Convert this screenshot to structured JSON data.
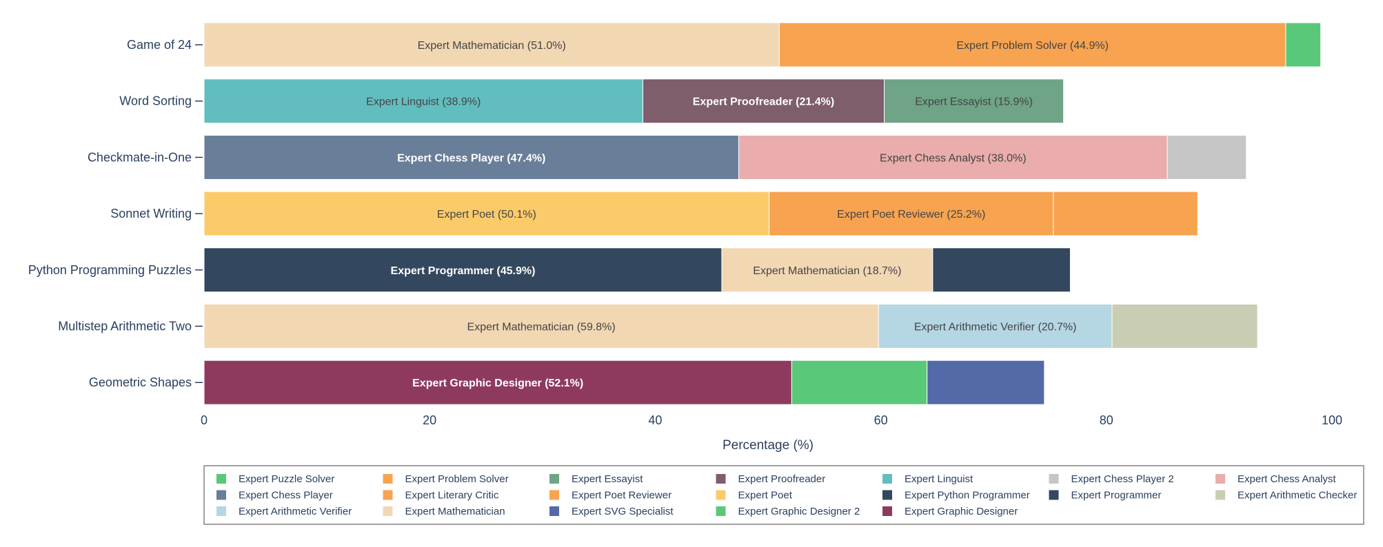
{
  "chart_data": {
    "type": "bar",
    "orientation": "horizontal",
    "barmode": "stack",
    "title": "",
    "xlabel": "Percentage (%)",
    "ylabel": "",
    "xlim": [
      0,
      100
    ],
    "xticks": [
      0,
      20,
      40,
      60,
      80,
      100
    ],
    "categories": [
      "Game of 24",
      "Word Sorting",
      "Checkmate-in-One",
      "Sonnet Writing",
      "Python Programming Puzzles",
      "Multistep Arithmetic Two",
      "Geometric Shapes"
    ],
    "rows": [
      {
        "category": "Game of 24",
        "segments": [
          {
            "name": "Expert Mathematician",
            "value": 51.0,
            "label": "Expert Mathematician (51.0%)"
          },
          {
            "name": "Expert Problem Solver",
            "value": 44.9,
            "label": "Expert Problem Solver (44.9%)"
          },
          {
            "name": "Expert Puzzle Solver",
            "value": 3.1,
            "label": ""
          }
        ]
      },
      {
        "category": "Word Sorting",
        "segments": [
          {
            "name": "Expert Linguist",
            "value": 38.9,
            "label": "Expert Linguist (38.9%)"
          },
          {
            "name": "Expert Proofreader",
            "value": 21.4,
            "label": "Expert Proofreader (21.4%)"
          },
          {
            "name": "Expert Essayist",
            "value": 15.9,
            "label": "Expert Essayist (15.9%)"
          }
        ]
      },
      {
        "category": "Checkmate-in-One",
        "segments": [
          {
            "name": "Expert Chess Player",
            "value": 47.4,
            "label": "Expert Chess Player (47.4%)"
          },
          {
            "name": "Expert Chess Analyst",
            "value": 38.0,
            "label": "Expert Chess Analyst (38.0%)"
          },
          {
            "name": "Expert Chess Player 2",
            "value": 7.0,
            "label": ""
          }
        ]
      },
      {
        "category": "Sonnet Writing",
        "segments": [
          {
            "name": "Expert Poet",
            "value": 50.1,
            "label": "Expert Poet (50.1%)"
          },
          {
            "name": "Expert Poet Reviewer",
            "value": 25.2,
            "label": "Expert Poet Reviewer (25.2%)"
          },
          {
            "name": "Expert Literary Critic",
            "value": 12.8,
            "label": ""
          }
        ]
      },
      {
        "category": "Python Programming Puzzles",
        "segments": [
          {
            "name": "Expert Programmer",
            "value": 45.9,
            "label": "Expert Programmer (45.9%)"
          },
          {
            "name": "Expert Mathematician",
            "value": 18.7,
            "label": "Expert Mathematician (18.7%)"
          },
          {
            "name": "Expert Python Programmer",
            "value": 12.2,
            "label": ""
          }
        ]
      },
      {
        "category": "Multistep Arithmetic Two",
        "segments": [
          {
            "name": "Expert Mathematician",
            "value": 59.8,
            "label": "Expert Mathematician (59.8%)"
          },
          {
            "name": "Expert Arithmetic Verifier",
            "value": 20.7,
            "label": "Expert Arithmetic Verifier (20.7%)"
          },
          {
            "name": "Expert Arithmetic Checker",
            "value": 12.9,
            "label": ""
          }
        ]
      },
      {
        "category": "Geometric Shapes",
        "segments": [
          {
            "name": "Expert Graphic Designer",
            "value": 52.1,
            "label": "Expert Graphic Designer (52.1%)"
          },
          {
            "name": "Expert Graphic Designer 2",
            "value": 12.0,
            "label": ""
          },
          {
            "name": "Expert SVG Specialist",
            "value": 10.4,
            "label": ""
          }
        ]
      }
    ],
    "legend": {
      "placement": "bottom",
      "entries": [
        {
          "name": "Expert Puzzle Solver",
          "color": "#59c878"
        },
        {
          "name": "Expert Problem Solver",
          "color": "#f7a350"
        },
        {
          "name": "Expert Essayist",
          "color": "#6fa487"
        },
        {
          "name": "Expert Proofreader",
          "color": "#7e5d6d"
        },
        {
          "name": "Expert Linguist",
          "color": "#62bebe"
        },
        {
          "name": "Expert Chess Player 2",
          "color": "#c6c6c6"
        },
        {
          "name": "Expert Chess Analyst",
          "color": "#eaacac"
        },
        {
          "name": "Expert Chess Player",
          "color": "#697e98"
        },
        {
          "name": "Expert Literary Critic",
          "color": "#f7a350"
        },
        {
          "name": "Expert Poet Reviewer",
          "color": "#f7a350"
        },
        {
          "name": "Expert Poet",
          "color": "#fbcb6a"
        },
        {
          "name": "Expert Python Programmer",
          "color": "#33475e"
        },
        {
          "name": "Expert Programmer",
          "color": "#33475e"
        },
        {
          "name": "Expert Arithmetic Checker",
          "color": "#c9cdb4"
        },
        {
          "name": "Expert Arithmetic Verifier",
          "color": "#b5d6e3"
        },
        {
          "name": "Expert Mathematician",
          "color": "#f2d7b3"
        },
        {
          "name": "Expert SVG Specialist",
          "color": "#5469a8"
        },
        {
          "name": "Expert Graphic Designer 2",
          "color": "#59c878"
        },
        {
          "name": "Expert Graphic Designer",
          "color": "#8e3a5f"
        }
      ]
    },
    "label_colors": {
      "Expert Proofreader": "#ffffff",
      "Expert Chess Player": "#ffffff",
      "Expert Programmer": "#ffffff",
      "Expert Graphic Designer": "#ffffff"
    },
    "default_label_color": "#444444"
  }
}
